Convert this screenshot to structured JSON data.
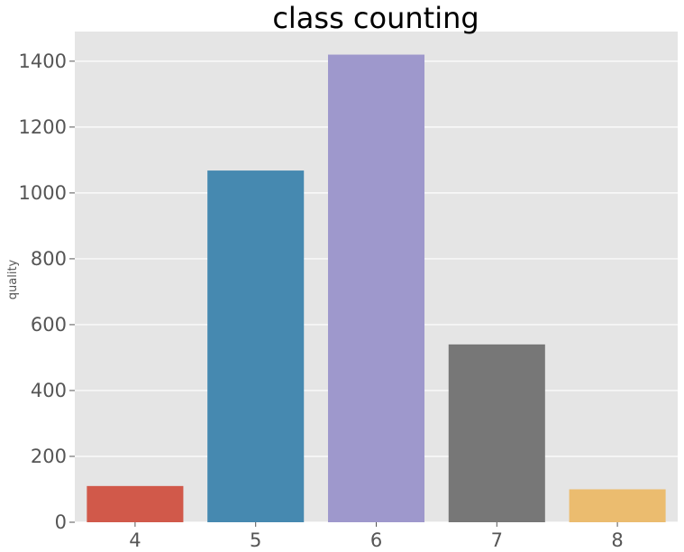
{
  "chart_data": {
    "type": "bar",
    "title": "class counting",
    "xlabel": "",
    "ylabel": "quality",
    "categories": [
      "4",
      "5",
      "6",
      "7",
      "8"
    ],
    "values": [
      110,
      1068,
      1420,
      540,
      100
    ],
    "ylim": [
      0,
      1490
    ],
    "yticks": [
      0,
      200,
      400,
      600,
      800,
      1000,
      1200,
      1400
    ],
    "ytick_labels": [
      "0",
      "200",
      "400",
      "600",
      "800",
      "1000",
      "1200",
      "1400"
    ],
    "grid": true,
    "legend": "none",
    "colors": [
      "#d1594a",
      "#4689b0",
      "#9e98cc",
      "#777777",
      "#ebbc6f"
    ],
    "background": "#e5e5e5",
    "gridColor": "#ffffff"
  }
}
